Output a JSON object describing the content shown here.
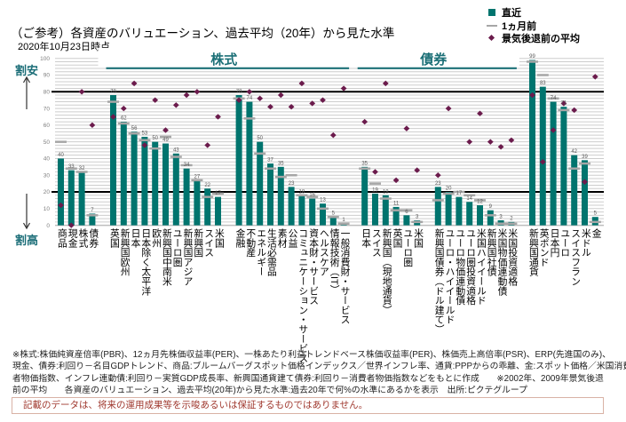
{
  "header": {
    "title": "（ご参考）各資産のバリュエーション、過去平均（20年）から見た水準",
    "subtitle": "2020年10月23日時点"
  },
  "legend": [
    {
      "label": "直近",
      "icon": "teal-square"
    },
    {
      "label": "1ヵ月前",
      "icon": "gray-dash"
    },
    {
      "label": "景気後退前の平均",
      "icon": "purple-diamond"
    }
  ],
  "axis_annotations": {
    "cheap": "割安",
    "expensive": "割高"
  },
  "colors": {
    "current": "#00746E",
    "month_ago": "#A6A6A6",
    "pre_recession": "#6B1B4C",
    "header": "#1C7077",
    "annotation": "#1C6E78",
    "disclaimer_text": "#A0392F",
    "disclaimer_border": "#D9B2A5"
  },
  "chart_data": {
    "type": "bar",
    "title": "（ご参考）各資産のバリュエーション、過去平均（20年）から見た水準",
    "xlabel": "",
    "ylabel": "",
    "ylim": [
      0,
      100
    ],
    "yticks": [
      0,
      10,
      20,
      30,
      40,
      50,
      60,
      70,
      80,
      90,
      100
    ],
    "grid": true,
    "reference_lines": [
      20,
      80
    ],
    "legend_position": "top-right",
    "clusters": [
      4,
      11,
      11,
      6,
      8,
      7
    ],
    "group_headers": [
      {
        "label": "株式",
        "clusters": [
          1,
          2
        ]
      },
      {
        "label": "債券",
        "clusters": [
          3,
          4
        ]
      }
    ],
    "categories": [
      "商品",
      "現金",
      "株式",
      "債券",
      "英国",
      "新興国欧州",
      "日本",
      "日本除く太平洋",
      "欧州",
      "新興国中南米",
      "ユーロ圏",
      "新興国アジア",
      "新興国",
      "スイス",
      "米国",
      "金融",
      "不動産",
      "エネルギー",
      "生活必需品",
      "素材",
      "公益",
      "コミュニケーション・サービス",
      "資本財・サービス",
      "ヘルスケア",
      "情報技術（IT）",
      "一般消費財・サービス",
      "日本",
      "スイス",
      "新興国（現地通貨）",
      "英国",
      "ユーロ圏",
      "米国",
      "新興国債券（ドル建て）",
      "ユーロ・ハイイールド",
      "ユーロ物価連動債",
      "ユーロ圏投資適格",
      "米国ハイイールド",
      "新興国社債",
      "米国物価連動債",
      "米国投資適格",
      "新興国通貨",
      "英ポンド",
      "日本円",
      "ユーロ",
      "スイスフラン",
      "米ドル",
      "金"
    ],
    "series": [
      {
        "name": "直近",
        "kind": "bar",
        "values": [
          40,
          33,
          32,
          7,
          78,
          62,
          56,
          53,
          50,
          49,
          43,
          34,
          27,
          22,
          17,
          78,
          74,
          50,
          37,
          35,
          23,
          18,
          16,
          13,
          5,
          1,
          35,
          19,
          18,
          11,
          6,
          3,
          23,
          20,
          17,
          14,
          12,
          9,
          3,
          2,
          99,
          83,
          74,
          71,
          42,
          39,
          5
        ]
      },
      {
        "name": "1ヵ月前",
        "kind": "dash",
        "values": [
          50,
          34,
          32,
          6,
          74,
          61,
          55,
          51,
          46,
          53,
          41,
          36,
          27,
          17,
          19,
          76,
          64,
          43,
          34,
          29,
          30,
          18,
          17,
          10,
          5,
          1,
          34,
          25,
          16,
          9,
          9,
          2,
          15,
          19,
          20,
          18,
          15,
          6,
          1,
          1,
          98,
          90,
          76,
          69,
          34,
          37,
          2
        ]
      },
      {
        "name": "景気後退前の平均",
        "kind": "diamond",
        "values": [
          12,
          0,
          80,
          60,
          65,
          70,
          85,
          48,
          75,
          57,
          72,
          78,
          80,
          48,
          65,
          75,
          80,
          76,
          71,
          78,
          71,
          85,
          73,
          75,
          54,
          82,
          62,
          32,
          85,
          27,
          58,
          33,
          30,
          70,
          null,
          50,
          67,
          50,
          47,
          51,
          78,
          38,
          57,
          73,
          69,
          26,
          89
        ]
      }
    ]
  },
  "footnotes": [
    "※株式:株価純資産倍率(PBR)、12ヵ月先株価収益率(PER)、一株あたり利益トレンドベース株価収益率(PER)、株価売上高倍率(PSR)、ERP(先進国のみ)、",
    "現金、債券:利回り－名目GDPトレンド、商品:ブルームバーグスポット価格インデックス／世界インフレ率、通貨:PPPからの乖離、金:スポット価格／米国消費",
    "者物価指数、インフレ連動債:利回り－実質GDP成長率、新興国通貨建て債券:利回り－消費者物価指数などをもとに作成　　※2002年、2009年景気後退",
    "前の平均　　各資産のバリュエーション、過去平均(20年)から見た水準:過去20年で何%の水準にあるかを表示　出所:ピクテグループ"
  ],
  "disclaimer": "記載のデータは、将来の運用成果等を示唆あるいは保証するものではありません。"
}
